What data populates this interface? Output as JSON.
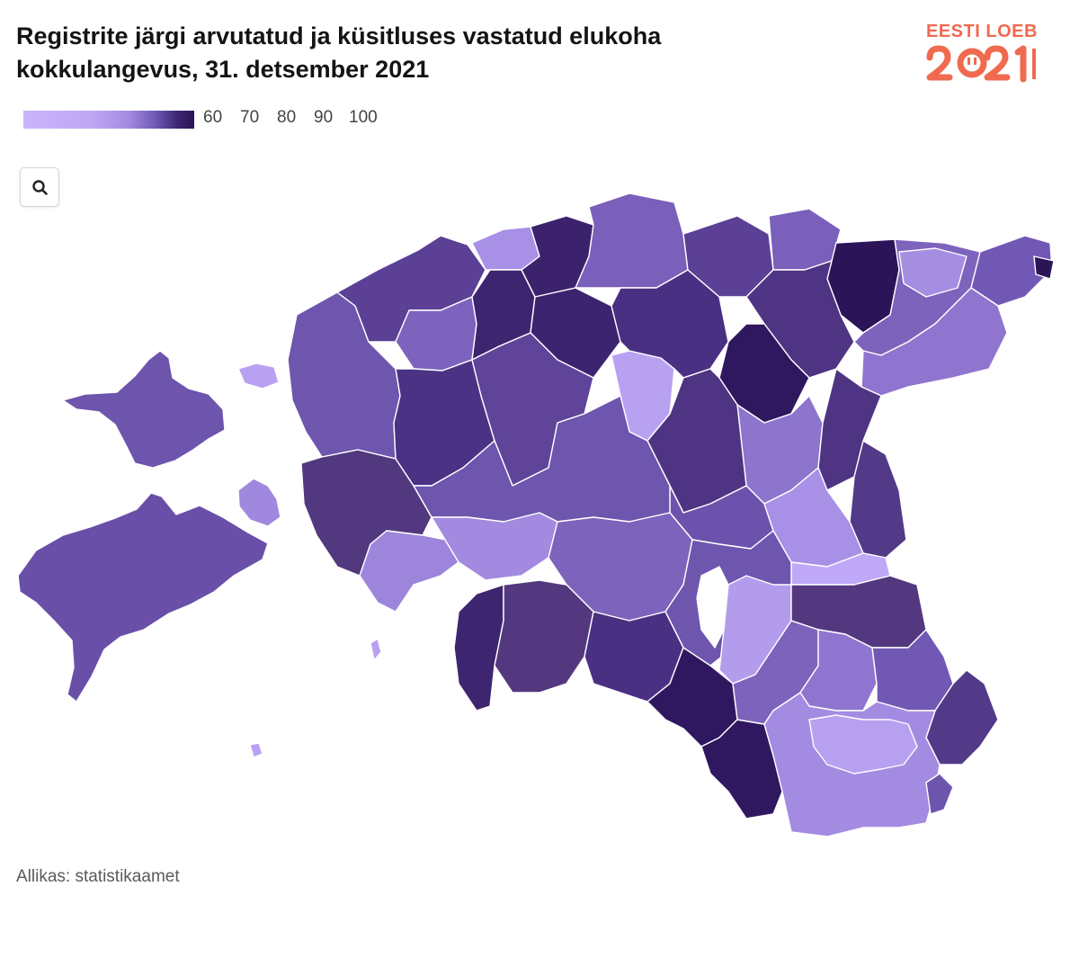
{
  "title": "Registrite järgi arvutatud ja küsitluses vastatud elukoha kokkulangevus, 31. detsember 2021",
  "logo": {
    "text": "EESTI LOEB",
    "year": "2021"
  },
  "legend": {
    "ticks": [
      "60",
      "70",
      "80",
      "90",
      "100"
    ]
  },
  "zoom_button": {
    "icon": "search-icon"
  },
  "source": "Allikas: statistikaamet",
  "colors": {
    "lightest": "#c9b4fb",
    "light": "#a38ae0",
    "medium": "#7458b4",
    "dark": "#54387f",
    "darkest": "#2e1658",
    "border": "#ffffff",
    "logo": "#f06a50"
  }
}
